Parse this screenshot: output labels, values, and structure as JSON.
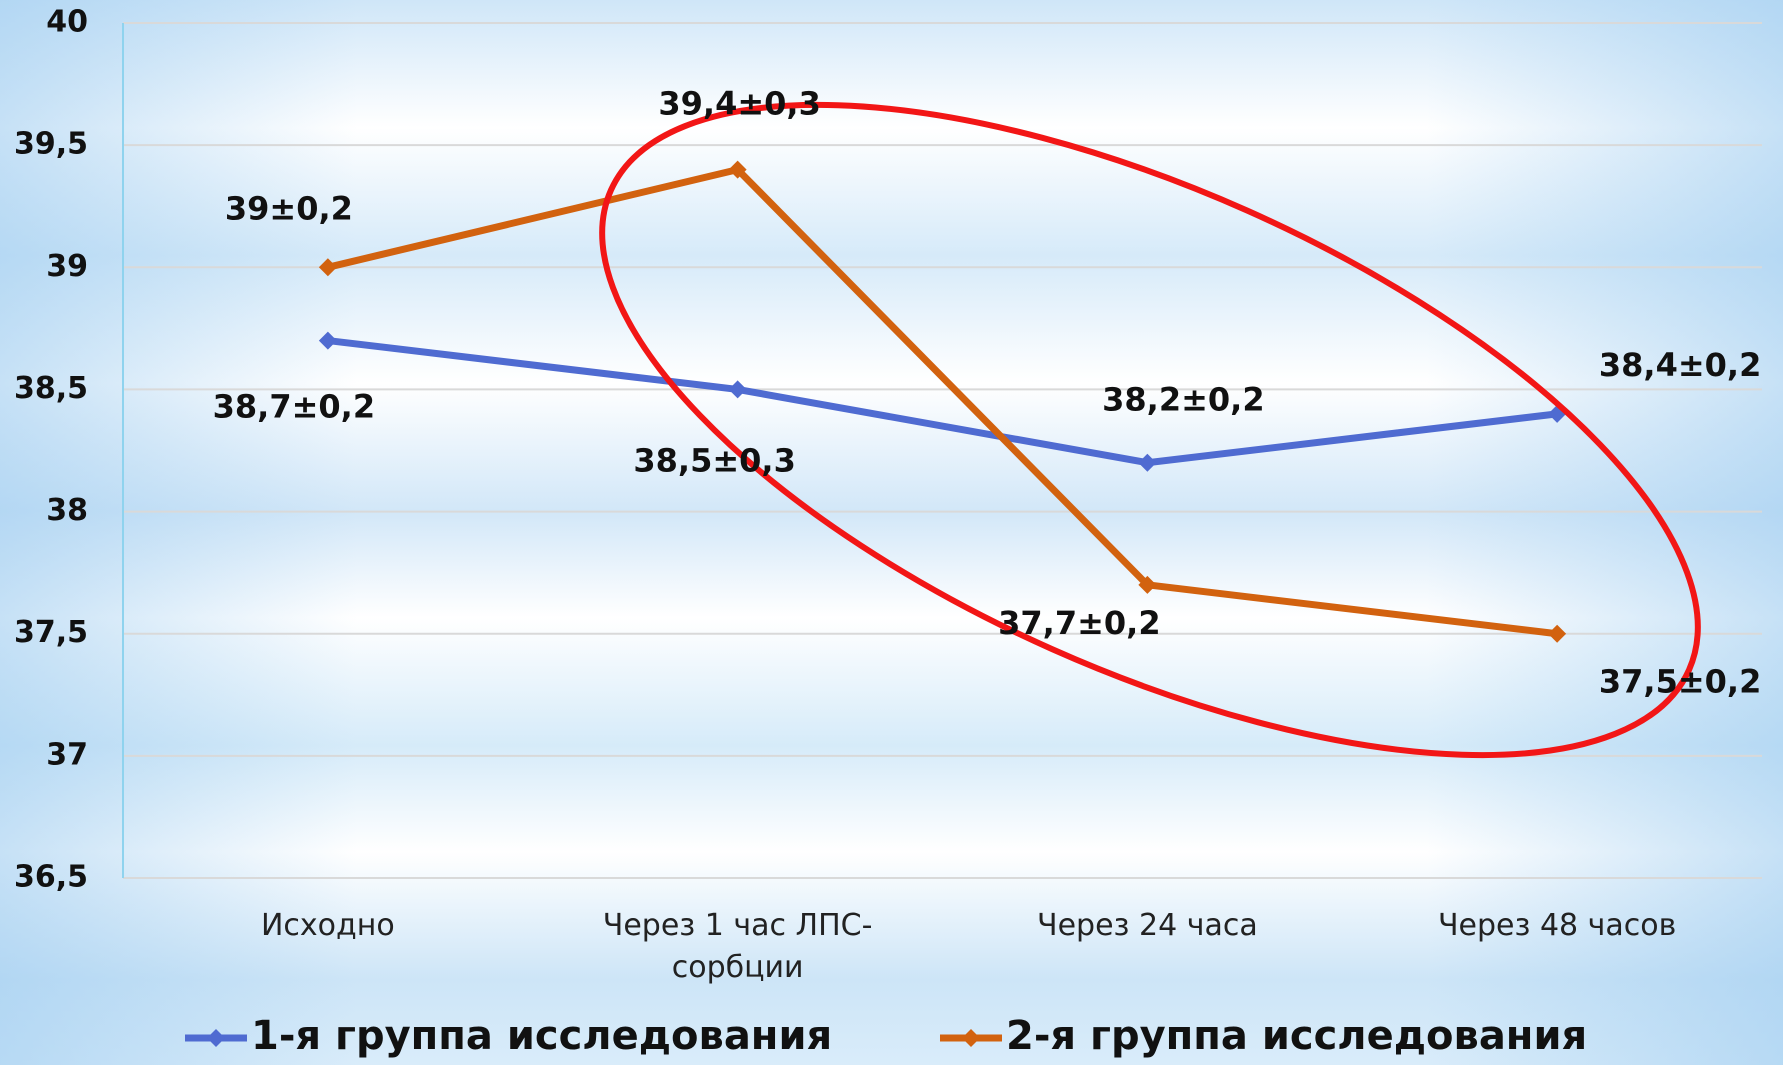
{
  "chart_data": {
    "type": "line",
    "categories": [
      "Исходно",
      "Через 1 час ЛПС-сорбции",
      "Через 24 часа",
      "Через 48 часов"
    ],
    "series": [
      {
        "name": "1-я группа исследования",
        "color": "#4f6bd1",
        "values": [
          38.7,
          38.5,
          38.2,
          38.4
        ],
        "value_labels": [
          "38,7±0,2",
          "38,5±0,3",
          "38,2±0,2",
          "38,4±0,2"
        ]
      },
      {
        "name": "2-я группа исследования",
        "color": "#d2620f",
        "values": [
          39,
          39.4,
          37.7,
          37.5
        ],
        "value_labels": [
          "39±0,2",
          "39,4±0,3",
          "37,7±0,2",
          "37,5±0,2"
        ]
      }
    ],
    "ylim": [
      36.5,
      40
    ],
    "yticks": [
      {
        "value": 36.5,
        "label": "36,5"
      },
      37,
      {
        "value": 37.5,
        "label": "37,5"
      },
      38,
      {
        "value": 38.5,
        "label": "38,5"
      },
      39,
      {
        "value": 39.5,
        "label": "39,5"
      },
      40
    ],
    "grid": true,
    "legend": "bottom"
  }
}
